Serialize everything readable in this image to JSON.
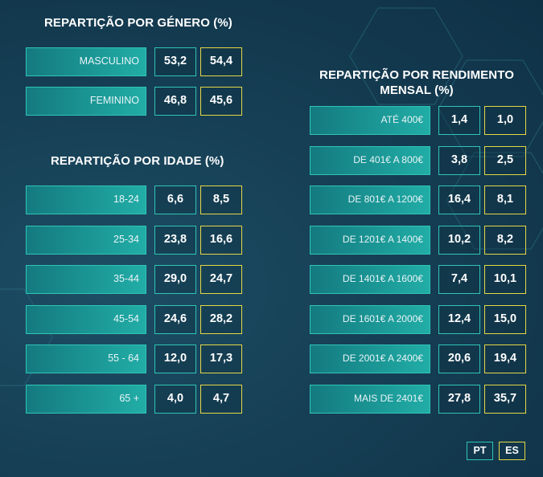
{
  "colors": {
    "pt_border": "#2fc4b6",
    "es_border": "#e5d845",
    "background": "#163f55"
  },
  "gender": {
    "title": "REPARTIÇÃO POR GÉNERO (%)",
    "rows": [
      {
        "label": "MASCULINO",
        "pt": "53,2",
        "es": "54,4"
      },
      {
        "label": "FEMININO",
        "pt": "46,8",
        "es": "45,6"
      }
    ]
  },
  "age": {
    "title": "REPARTIÇÃO POR IDADE (%)",
    "rows": [
      {
        "label": "18-24",
        "pt": "6,6",
        "es": "8,5"
      },
      {
        "label": "25-34",
        "pt": "23,8",
        "es": "16,6"
      },
      {
        "label": "35-44",
        "pt": "29,0",
        "es": "24,7"
      },
      {
        "label": "45-54",
        "pt": "24,6",
        "es": "28,2"
      },
      {
        "label": "55 - 64",
        "pt": "12,0",
        "es": "17,3"
      },
      {
        "label": "65 +",
        "pt": "4,0",
        "es": "4,7"
      }
    ]
  },
  "income": {
    "title_line1": "REPARTIÇÃO POR RENDIMENTO",
    "title_line2": "MENSAL (%)",
    "rows": [
      {
        "label": "ATÉ 400€",
        "pt": "1,4",
        "es": "1,0"
      },
      {
        "label": "DE 401€ A 800€",
        "pt": "3,8",
        "es": "2,5"
      },
      {
        "label": "DE 801€ A 1200€",
        "pt": "16,4",
        "es": "8,1"
      },
      {
        "label": "DE 1201€ A 1400€",
        "pt": "10,2",
        "es": "8,2"
      },
      {
        "label": "DE 1401€ A 1600€",
        "pt": "7,4",
        "es": "10,1"
      },
      {
        "label": "DE 1601€ A 2000€",
        "pt": "12,4",
        "es": "15,0"
      },
      {
        "label": "DE 2001€ A 2400€",
        "pt": "20,6",
        "es": "19,4"
      },
      {
        "label": "MAIS DE 2401€",
        "pt": "27,8",
        "es": "35,7"
      }
    ]
  },
  "legend": {
    "pt": "PT",
    "es": "ES"
  }
}
